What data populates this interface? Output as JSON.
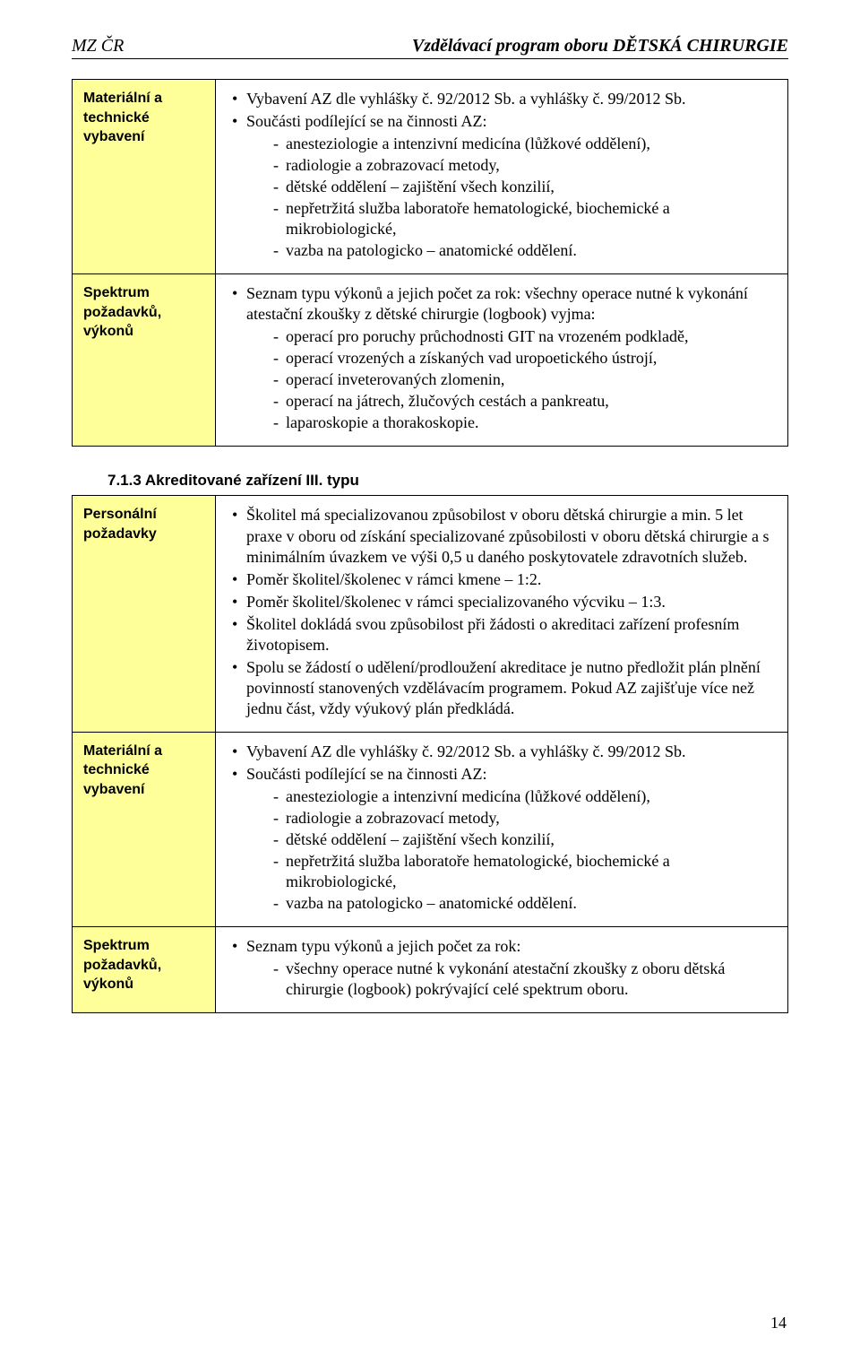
{
  "header": {
    "left": "MZ ČR",
    "right": "Vzdělávací program oboru DĚTSKÁ CHIRURGIE"
  },
  "table1": {
    "row1": {
      "label": "Materiální a technické vybavení",
      "b1": "Vybavení AZ dle vyhlášky č. 92/2012 Sb. a vyhlášky č. 99/2012 Sb.",
      "b2": "Součásti podílející se na činnosti AZ:",
      "d1": "anesteziologie a intenzivní medicína (lůžkové oddělení),",
      "d2": "radiologie a zobrazovací metody,",
      "d3": "dětské oddělení – zajištění všech konzilií,",
      "d4": "nepřetržitá služba laboratoře hematologické, biochemické a mikrobiologické,",
      "d5": "vazba na patologicko – anatomické oddělení."
    },
    "row2": {
      "label": "Spektrum požadavků, výkonů",
      "intro": "Seznam typu výkonů a jejich počet za rok: všechny operace nutné k vykonání atestační zkoušky z dětské chirurgie (logbook) vyjma:",
      "d1": "operací pro poruchy průchodnosti GIT na vrozeném podkladě,",
      "d2": "operací vrozených a získaných vad uropoetického ústrojí,",
      "d3": "operací inveterovaných zlomenin,",
      "d4": "operací na játrech, žlučových cestách a pankreatu,",
      "d5": "laparoskopie a thorakoskopie."
    }
  },
  "section_title": "7.1.3 Akreditované zařízení III. typu",
  "table2": {
    "row1": {
      "label": "Personální požadavky",
      "b1": "Školitel má specializovanou způsobilost v oboru dětská chirurgie a min. 5 let praxe v oboru od získání specializované způsobilosti v oboru dětská chirurgie a s minimálním úvazkem ve výši 0,5 u daného poskytovatele zdravotních služeb.",
      "b2": "Poměr školitel/školenec v rámci kmene – 1:2.",
      "b3": "Poměr školitel/školenec v rámci specializovaného výcviku – 1:3.",
      "b4": "Školitel dokládá svou způsobilost při žádosti o akreditaci zařízení profesním životopisem.",
      "b5": "Spolu se žádostí o udělení/prodloužení akreditace je nutno předložit plán plnění povinností stanovených vzdělávacím programem. Pokud AZ zajišťuje více než jednu část, vždy výukový plán předkládá."
    },
    "row2": {
      "label": "Materiální a technické vybavení",
      "b1": "Vybavení AZ dle vyhlášky č. 92/2012 Sb. a vyhlášky č. 99/2012 Sb.",
      "b2": "Součásti podílející se na činnosti AZ:",
      "d1": "anesteziologie a intenzivní medicína (lůžkové oddělení),",
      "d2": "radiologie a zobrazovací metody,",
      "d3": "dětské oddělení – zajištění všech konzilií,",
      "d4": "nepřetržitá služba laboratoře hematologické, biochemické a mikrobiologické,",
      "d5": "vazba na patologicko – anatomické oddělení."
    },
    "row3": {
      "label": "Spektrum požadavků, výkonů",
      "intro": "Seznam typu výkonů a jejich počet za rok:",
      "d1": "všechny operace nutné k vykonání atestační zkoušky z oboru dětská chirurgie (logbook) pokrývající celé spektrum oboru."
    }
  },
  "page_number": "14"
}
